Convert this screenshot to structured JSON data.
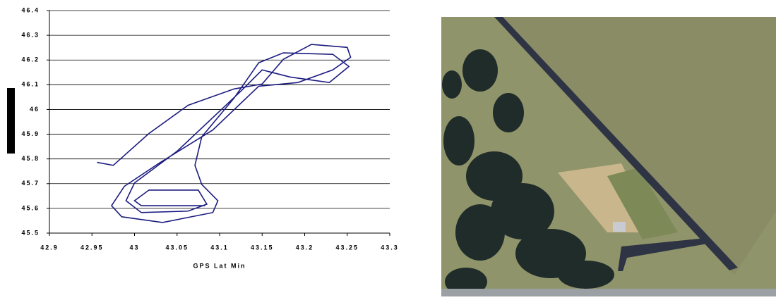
{
  "chart_data": {
    "type": "line",
    "x_label": "GPS Lat Min",
    "xlim": [
      42.9,
      43.3
    ],
    "xticks": [
      42.9,
      42.95,
      43,
      43.05,
      43.1,
      43.15,
      43.2,
      43.25,
      43.3
    ],
    "ylim": [
      45.5,
      46.4
    ],
    "yticks": [
      45.5,
      45.6,
      45.7,
      45.8,
      45.9,
      46,
      46.1,
      46.2,
      46.3,
      46.4
    ],
    "grid": true,
    "series": [
      {
        "color": "#1c1c80",
        "x": [
          42.956,
          42.975,
          43.017,
          43.063,
          43.117,
          43.15,
          43.175,
          43.208,
          43.25,
          43.254,
          43.233,
          43.192,
          43.146,
          43.092,
          43.029,
          42.988,
          42.973,
          42.985,
          43.033,
          43.092,
          43.098,
          43.079,
          43.071,
          43.079,
          43.117,
          43.146,
          43.175,
          43.233,
          43.252,
          43.229,
          43.183,
          43.15,
          43.125,
          43.05,
          43,
          42.99,
          43.008,
          43.063,
          43.085,
          43.075,
          43.017,
          43,
          43.008,
          43.083
        ],
        "values": [
          45.786,
          45.774,
          45.903,
          46.017,
          46.083,
          46.103,
          46.203,
          46.263,
          46.251,
          46.211,
          46.16,
          46.109,
          46.094,
          45.917,
          45.783,
          45.689,
          45.611,
          45.566,
          45.543,
          45.583,
          45.631,
          45.697,
          45.774,
          45.889,
          46.046,
          46.189,
          46.229,
          46.223,
          46.174,
          46.109,
          46.131,
          46.16,
          46.074,
          45.831,
          45.703,
          45.631,
          45.583,
          45.589,
          45.617,
          45.674,
          45.674,
          45.631,
          45.611,
          45.611
        ]
      }
    ]
  }
}
